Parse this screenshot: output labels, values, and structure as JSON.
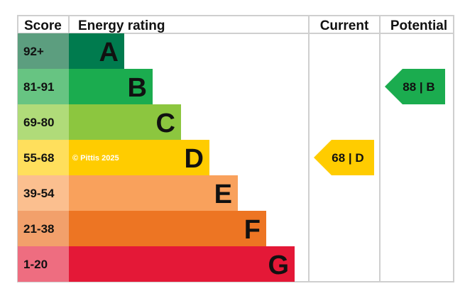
{
  "chart_data": {
    "type": "bar",
    "headers": {
      "score": "Score",
      "rating": "Energy rating",
      "current": "Current",
      "potential": "Potential"
    },
    "bands": [
      {
        "letter": "A",
        "range": "92+",
        "color": "#007b4e",
        "tint": "#5c9e7f"
      },
      {
        "letter": "B",
        "range": "81-91",
        "color": "#1bac4f",
        "tint": "#67c482"
      },
      {
        "letter": "C",
        "range": "69-80",
        "color": "#8cc63f",
        "tint": "#b0db79"
      },
      {
        "letter": "D",
        "range": "55-68",
        "color": "#ffcc00",
        "tint": "#ffdf5c"
      },
      {
        "letter": "E",
        "range": "39-54",
        "color": "#f9a15c",
        "tint": "#fbbf8f"
      },
      {
        "letter": "F",
        "range": "21-38",
        "color": "#ed7523",
        "tint": "#f2a06b"
      },
      {
        "letter": "G",
        "range": "1-20",
        "color": "#e41837",
        "tint": "#ee6d80"
      }
    ],
    "current": {
      "value": 68,
      "band": "D",
      "label": "68 | D"
    },
    "potential": {
      "value": 88,
      "band": "B",
      "label": "88 | B"
    },
    "watermark": "© Pittis 2025"
  }
}
